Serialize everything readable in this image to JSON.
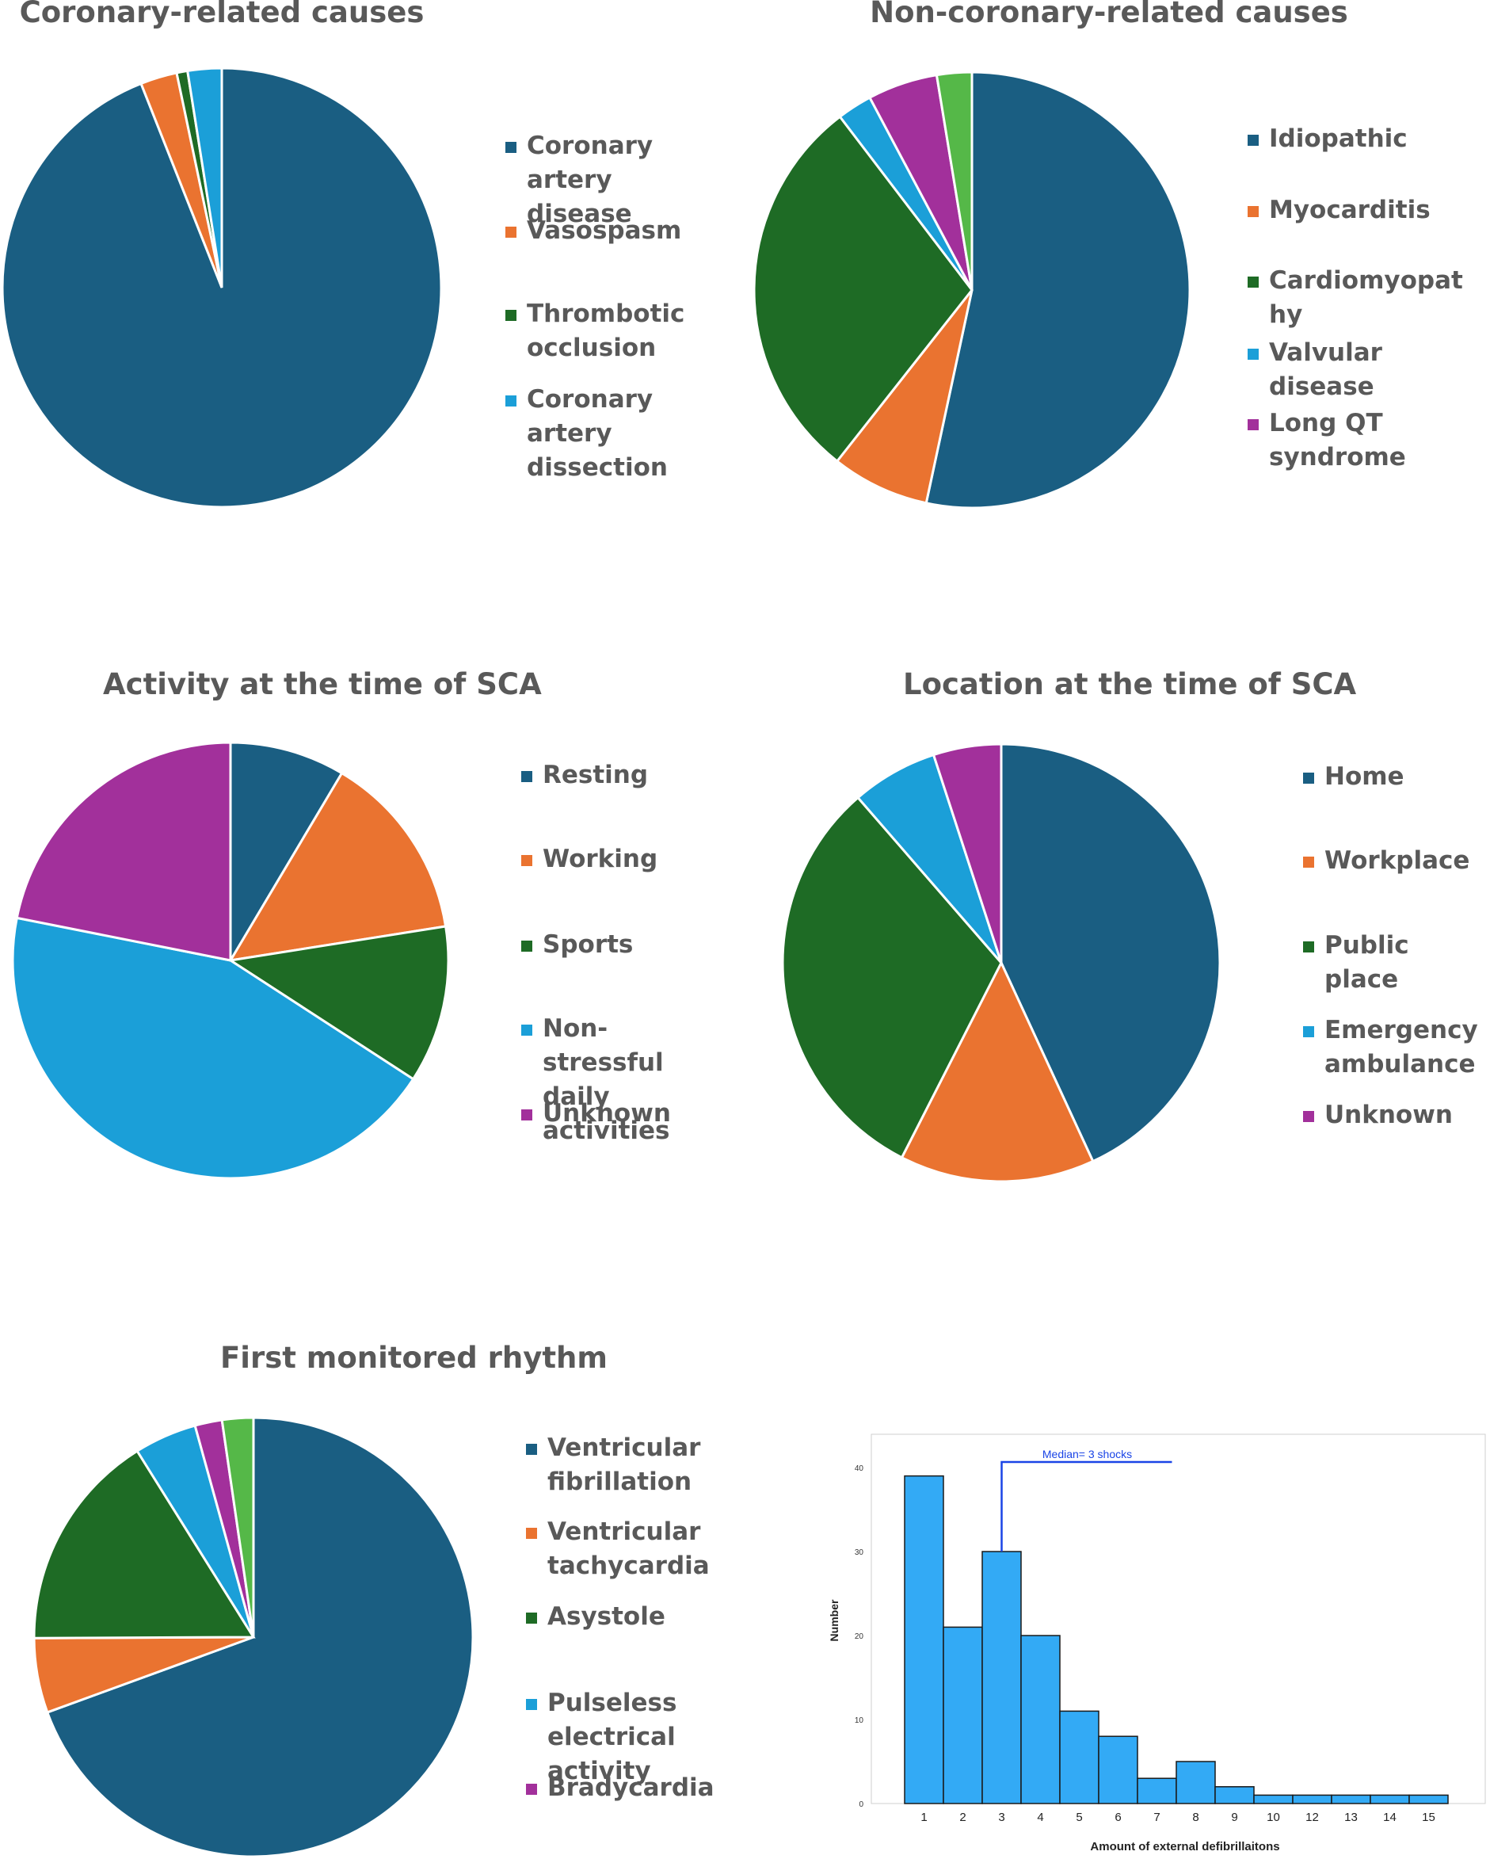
{
  "chart_data": [
    {
      "type": "pie",
      "title": "Coronary-related causes",
      "colors": [
        "#1a5e82",
        "#ea7330",
        "#1e6b25",
        "#1b9fd8"
      ],
      "categories": [
        "Coronary artery disease",
        "Vasospasm",
        "Thrombotic occlusion",
        "Coronary artery dissection"
      ],
      "legend_labels": [
        "Coronary artery\ndisease",
        "Vasospasm",
        "Thrombotic\nocclusion",
        "Coronary artery\ndissection"
      ],
      "values": [
        94,
        2.7,
        0.8,
        2.5
      ],
      "legend": "right"
    },
    {
      "type": "pie",
      "title": "Non-coronary-related causes",
      "colors": [
        "#1a5e82",
        "#ea7330",
        "#1e6b25",
        "#1b9fd8",
        "#a2309b",
        "#55b848"
      ],
      "categories": [
        "Idiopathic",
        "Myocarditis",
        "Cardiomyopathy",
        "Valvular disease",
        "Long QT syndrome",
        ""
      ],
      "legend_labels": [
        "Idiopathic",
        "Myocarditis",
        "Cardiomyopat\nhy",
        "Valvular\ndisease",
        "Long QT\nsyndrome"
      ],
      "values": [
        51.5,
        7,
        28,
        2.5,
        5,
        2.5
      ],
      "legend": "right"
    },
    {
      "type": "pie",
      "title": "Activity at the time of SCA",
      "colors": [
        "#1a5e82",
        "#ea7330",
        "#1e6b25",
        "#1b9fd8",
        "#a2309b"
      ],
      "categories": [
        "Resting",
        "Working",
        "Sports",
        "Non-stressful daily activities",
        "Unknown"
      ],
      "legend_labels": [
        "Resting",
        "Working",
        "Sports",
        "Non-stressful\ndaily activities",
        "Unknown"
      ],
      "values": [
        8.2,
        13.4,
        11.2,
        42.2,
        21
      ],
      "legend": "right"
    },
    {
      "type": "pie",
      "title": "Location at the time of SCA",
      "colors": [
        "#1a5e82",
        "#ea7330",
        "#1e6b25",
        "#1b9fd8",
        "#a2309b"
      ],
      "categories": [
        "Home",
        "Workplace",
        "Public place",
        "Emergency ambulance",
        "Unknown"
      ],
      "legend_labels": [
        "Home",
        "Workplace",
        "Public place",
        "Emergency\nambulance",
        "Unknown"
      ],
      "values": [
        41.3,
        13.8,
        29.8,
        6.1,
        4.8
      ],
      "legend": "right"
    },
    {
      "type": "pie",
      "title": "First monitored rhythm",
      "colors": [
        "#1a5e82",
        "#ea7330",
        "#1e6b25",
        "#1b9fd8",
        "#a2309b",
        "#55b848"
      ],
      "categories": [
        "Ventricular fibrillation",
        "Ventricular tachycardia",
        "Asystole",
        "Pulseless electrical activity",
        "Bradycardia",
        ""
      ],
      "legend_labels": [
        "Ventricular\nfibrillation",
        "Ventricular\ntachycardia",
        "Asystole",
        "Pulseless\nelectrical activity",
        "Bradycardia"
      ],
      "values": [
        69.5,
        5.5,
        16.2,
        4.6,
        2,
        2.3
      ],
      "legend": "right"
    },
    {
      "type": "bar",
      "categories": [
        "1",
        "2",
        "3",
        "4",
        "5",
        "6",
        "7",
        "8",
        "9",
        "10",
        "12",
        "13",
        "14",
        "15"
      ],
      "values": [
        39,
        21,
        30,
        20,
        11,
        8,
        3,
        5,
        2,
        1,
        1,
        1,
        1,
        1
      ],
      "xlabel": "Amount of external defibrillaitons",
      "ylabel": "Number",
      "yticks": [
        "0",
        "10",
        "20",
        "30",
        "40"
      ],
      "ylim": [
        0,
        40
      ],
      "annotation": "Median= 3 shocks",
      "annotation_x": "3",
      "color": "#33aaf5",
      "annotation_color": "#1a44e6"
    }
  ]
}
